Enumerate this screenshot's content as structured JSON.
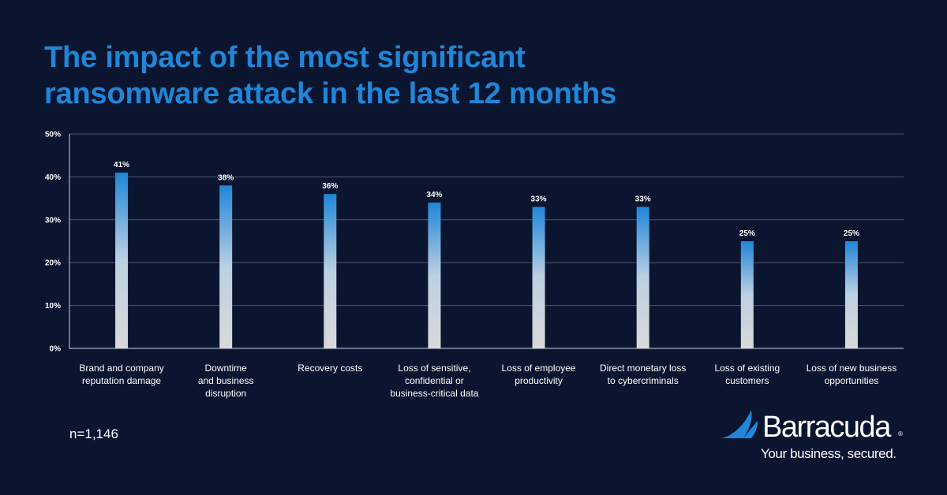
{
  "title_lines": [
    "The impact of the most significant",
    "ransomware attack in the last 12 months"
  ],
  "note": "n=1,146",
  "brand": {
    "name": "Barracuda",
    "reg": "®",
    "tagline": "Your business, secured.",
    "accent_color": "#1f86d8",
    "background_color": "#0b1530"
  },
  "chart_data": {
    "type": "bar",
    "title": "The impact of the most significant ransomware attack in the last 12 months",
    "xlabel": "",
    "ylabel": "",
    "ylim": [
      0,
      50
    ],
    "yticks": [
      0,
      10,
      20,
      30,
      40,
      50
    ],
    "ytick_labels": [
      "0%",
      "10%",
      "20%",
      "30%",
      "40%",
      "50%"
    ],
    "grid": true,
    "categories": [
      [
        "Brand and company",
        "reputation damage"
      ],
      [
        "Downtime",
        "and business",
        "disruption"
      ],
      [
        "Recovery costs"
      ],
      [
        "Loss of sensitive,",
        "confidential or",
        "business-critical data"
      ],
      [
        "Loss of employee",
        "productivity"
      ],
      [
        "Direct monetary loss",
        "to cybercriminals"
      ],
      [
        "Loss of existing",
        "customers"
      ],
      [
        "Loss of new business",
        "opportunities"
      ]
    ],
    "values": [
      41,
      38,
      36,
      34,
      33,
      33,
      25,
      25
    ],
    "value_labels": [
      "41%",
      "38%",
      "36%",
      "34%",
      "33%",
      "33%",
      "25%",
      "25%"
    ],
    "bar_gradient": [
      "#1f86d8",
      "#d9d9d9"
    ]
  }
}
